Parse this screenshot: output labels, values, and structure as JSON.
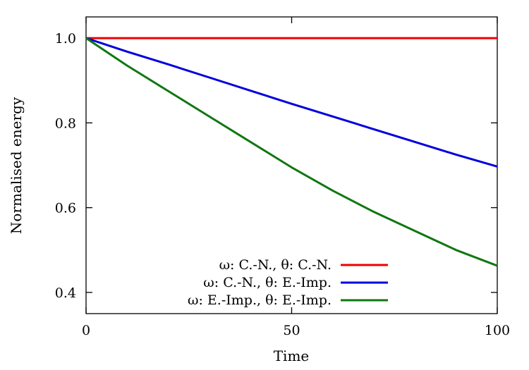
{
  "chart_data": {
    "type": "line",
    "title": "",
    "xlabel": "Time",
    "ylabel": "Normalised energy",
    "xlim": [
      0,
      100
    ],
    "ylim": [
      0.35,
      1.05
    ],
    "xticks": [
      0,
      50,
      100
    ],
    "xtick_labels": [
      "0",
      "50",
      "100"
    ],
    "yticks": [
      0.4,
      0.6,
      0.8,
      1.0
    ],
    "ytick_labels": [
      "0.4",
      "0.6",
      "0.8",
      "1.0"
    ],
    "grid": false,
    "legend_position": "bottom-center",
    "series": [
      {
        "name": "ω: C.-N., θ: C.-N.",
        "color": "#ee0000",
        "x": [
          0,
          10,
          20,
          30,
          40,
          50,
          60,
          70,
          80,
          90,
          100
        ],
        "y": [
          1.0,
          1.0,
          1.0,
          1.0,
          1.0,
          1.0,
          1.0,
          1.0,
          1.0,
          1.0,
          1.0
        ]
      },
      {
        "name": "ω: C.-N., θ: E.-Imp.",
        "color": "#0000dd",
        "x": [
          0,
          10,
          20,
          30,
          40,
          50,
          60,
          70,
          80,
          90,
          100
        ],
        "y": [
          1.0,
          0.968,
          0.938,
          0.907,
          0.876,
          0.845,
          0.815,
          0.785,
          0.755,
          0.725,
          0.697
        ]
      },
      {
        "name": "ω: E.-Imp., θ: E.-Imp.",
        "color": "#117711",
        "x": [
          0,
          10,
          20,
          30,
          40,
          50,
          60,
          70,
          80,
          90,
          100
        ],
        "y": [
          1.0,
          0.935,
          0.875,
          0.815,
          0.755,
          0.695,
          0.64,
          0.59,
          0.545,
          0.5,
          0.463
        ]
      }
    ]
  }
}
